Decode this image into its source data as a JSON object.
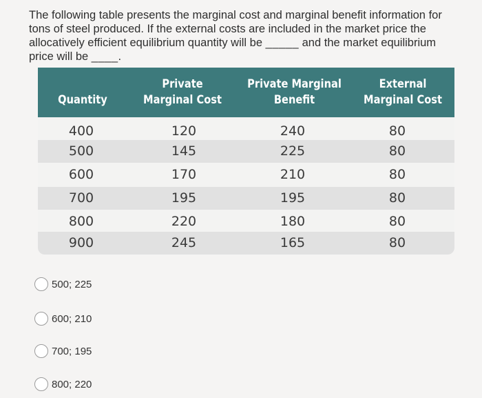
{
  "question": {
    "line1": "The following table presents the marginal cost and marginal benefit information for",
    "line2": "tons of steel produced. If the external costs are included in the market price the",
    "line3_a": "allocatively efficient equilibrium quantity will be",
    "line3_blank": "_____",
    "line3_b": "and the market equilibrium",
    "line4_a": "price will be",
    "line4_blank": "____."
  },
  "table": {
    "headers": [
      {
        "l1": "",
        "l2": "Quantity"
      },
      {
        "l1": "Private",
        "l2": "Marginal Cost"
      },
      {
        "l1": "Private Marginal",
        "l2": "Benefit"
      },
      {
        "l1": "External",
        "l2": "Marginal Cost"
      }
    ],
    "rows": [
      [
        "400",
        "120",
        "240",
        "80"
      ],
      [
        "500",
        "145",
        "225",
        "80"
      ],
      [
        "600",
        "170",
        "210",
        "80"
      ],
      [
        "700",
        "195",
        "195",
        "80"
      ],
      [
        "800",
        "220",
        "180",
        "80"
      ],
      [
        "900",
        "245",
        "165",
        "80"
      ]
    ],
    "header_color": "#3d7a7c",
    "shade_color": "#e1e1e1"
  },
  "options": [
    "500; 225",
    "600; 210",
    "700; 195",
    "800; 220"
  ]
}
